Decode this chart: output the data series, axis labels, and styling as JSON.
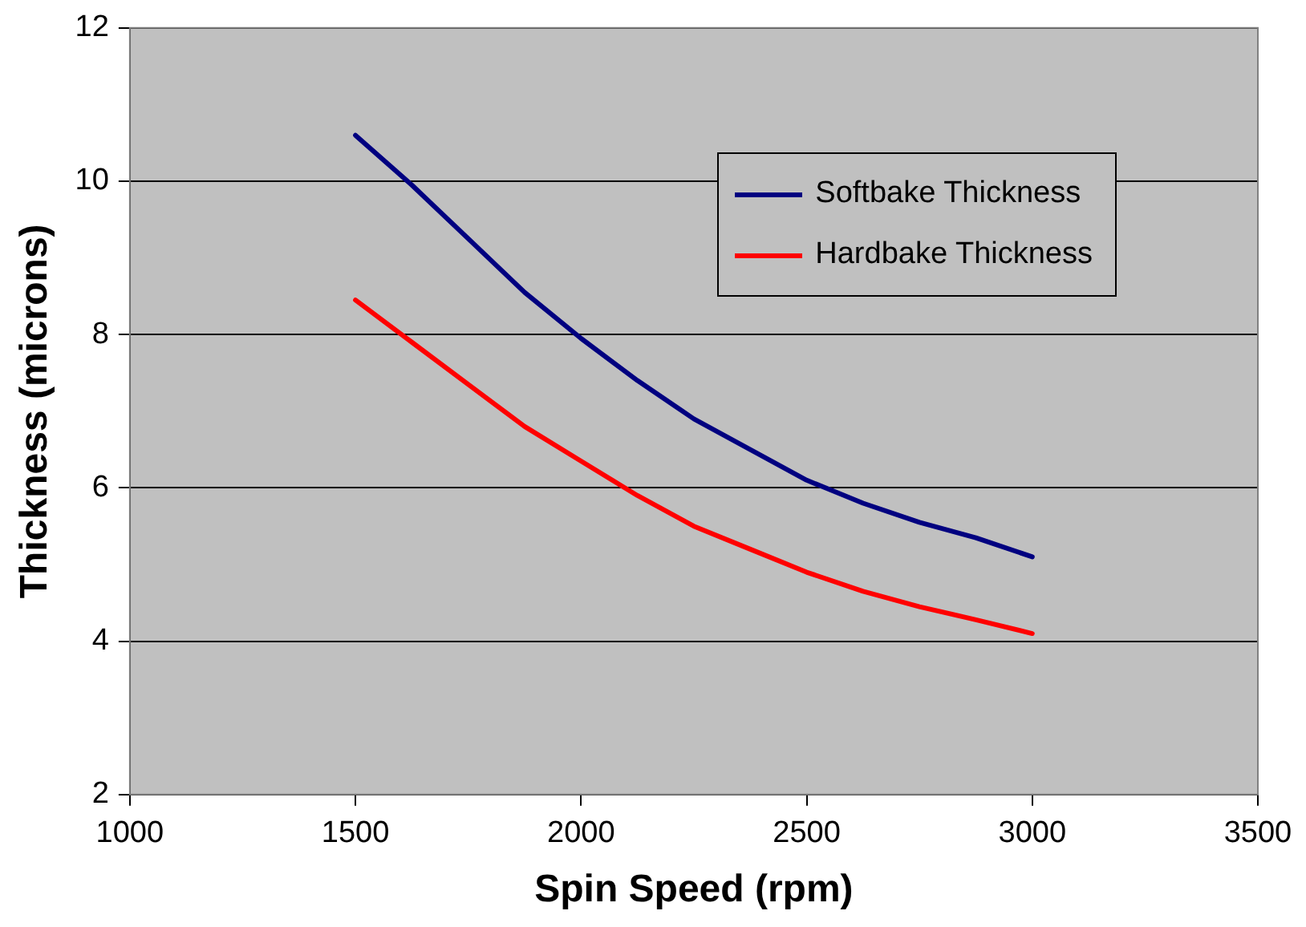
{
  "chart_data": {
    "type": "line",
    "xlabel": "Spin Speed (rpm)",
    "ylabel": "Thickness (microns)",
    "x": [
      1500,
      1625,
      1750,
      1875,
      2000,
      2125,
      2250,
      2375,
      2500,
      2625,
      2750,
      2875,
      3000
    ],
    "series": [
      {
        "name": "Softbake Thickness",
        "color": "#000080",
        "values": [
          10.6,
          9.95,
          9.25,
          8.55,
          7.95,
          7.4,
          6.9,
          6.5,
          6.1,
          5.8,
          5.55,
          5.35,
          5.1
        ]
      },
      {
        "name": "Hardbake Thickness",
        "color": "#ff0000",
        "values": [
          8.45,
          7.9,
          7.35,
          6.8,
          6.35,
          5.9,
          5.5,
          5.2,
          4.9,
          4.65,
          4.45,
          4.28,
          4.1
        ]
      }
    ],
    "xlim": [
      1000,
      3500
    ],
    "xticks": [
      1000,
      1500,
      2000,
      2500,
      3000,
      3500
    ],
    "ylim": [
      2,
      12
    ],
    "yticks": [
      2,
      4,
      6,
      8,
      10,
      12
    ],
    "grid": "y",
    "legend": "top right",
    "marker": "none",
    "line_style": "solid"
  }
}
